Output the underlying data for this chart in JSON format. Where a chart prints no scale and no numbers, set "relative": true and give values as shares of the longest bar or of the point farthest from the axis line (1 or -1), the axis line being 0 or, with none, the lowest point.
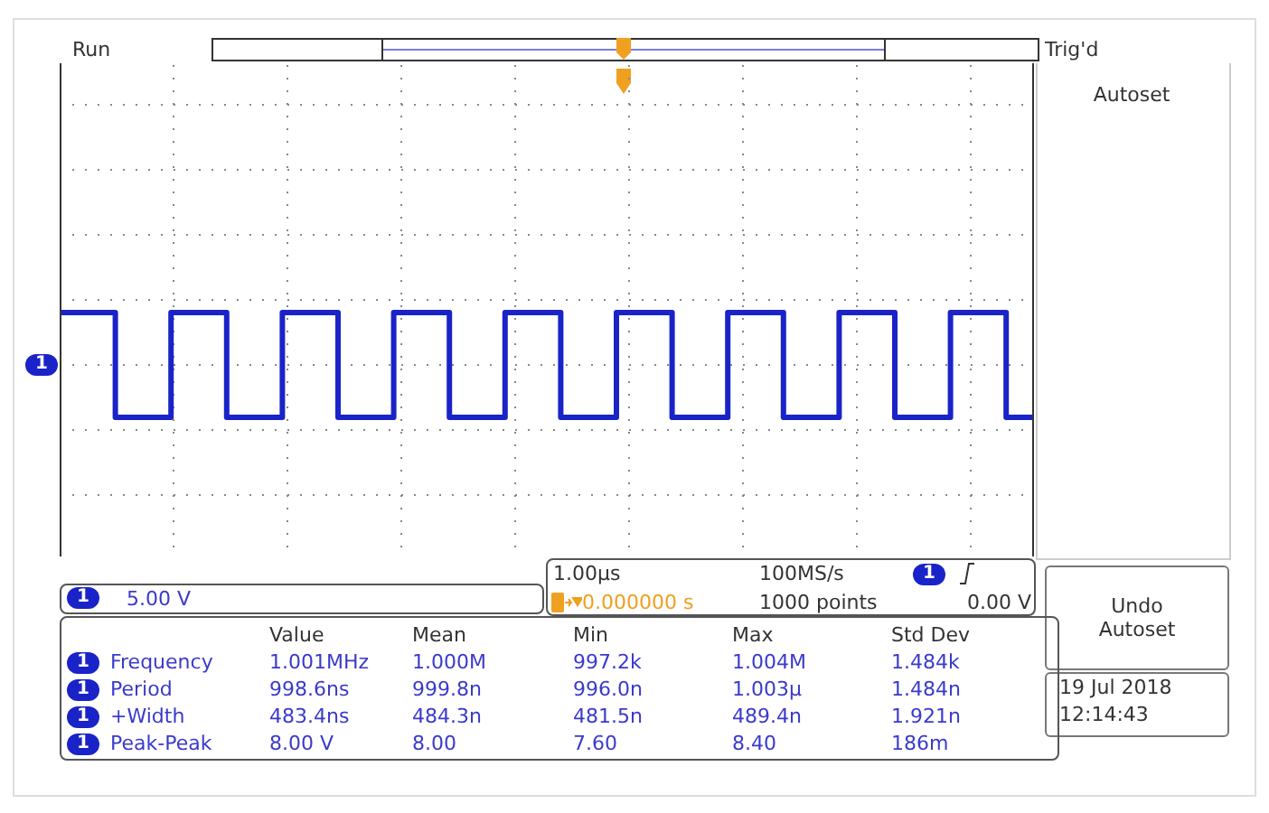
{
  "chart_data": {
    "type": "step",
    "relative": true,
    "grid": true,
    "categories": [
      null,
      null,
      null,
      null,
      null,
      null,
      null,
      null,
      null,
      null,
      null,
      null,
      null,
      null,
      null,
      null,
      null,
      null,
      null,
      null,
      null,
      null,
      null,
      null,
      null,
      null,
      null,
      null,
      null,
      null,
      null,
      null,
      null,
      null,
      null,
      null
    ],
    "series": [
      {
        "color": "#1a23c8",
        "values": [
          1,
          1,
          -1,
          -1,
          1,
          1,
          -1,
          -1,
          1,
          1,
          -1,
          -1,
          1,
          1,
          -1,
          -1,
          1,
          1,
          -1,
          -1,
          1,
          1,
          -1,
          -1,
          1,
          1,
          -1,
          -1,
          1,
          1,
          -1,
          -1,
          1,
          1,
          -1,
          -1
        ]
      }
    ],
    "annotations": [
      "Run",
      "Trig'd",
      "Autoset",
      "Undo Autoset",
      "1",
      "5.00 V",
      "1.00µs",
      "100MS/s",
      "0.000000 s",
      "1000 points",
      "0.00 V",
      "19 Jul  2018",
      "12:14:43",
      "Value",
      "Mean",
      "Min",
      "Max",
      "Std Dev",
      "Frequency",
      "1.001MHz",
      "1.000M",
      "997.2k",
      "1.004M",
      "1.484k",
      "Period",
      "998.6ns",
      "999.8n",
      "996.0n",
      "1.003µ",
      "1.484n",
      "+Width",
      "483.4ns",
      "484.3n",
      "481.5n",
      "489.4n",
      "1.921n",
      "Peak-Peak",
      "8.00 V",
      "8.00",
      "7.60",
      "8.40",
      "186m"
    ]
  }
}
